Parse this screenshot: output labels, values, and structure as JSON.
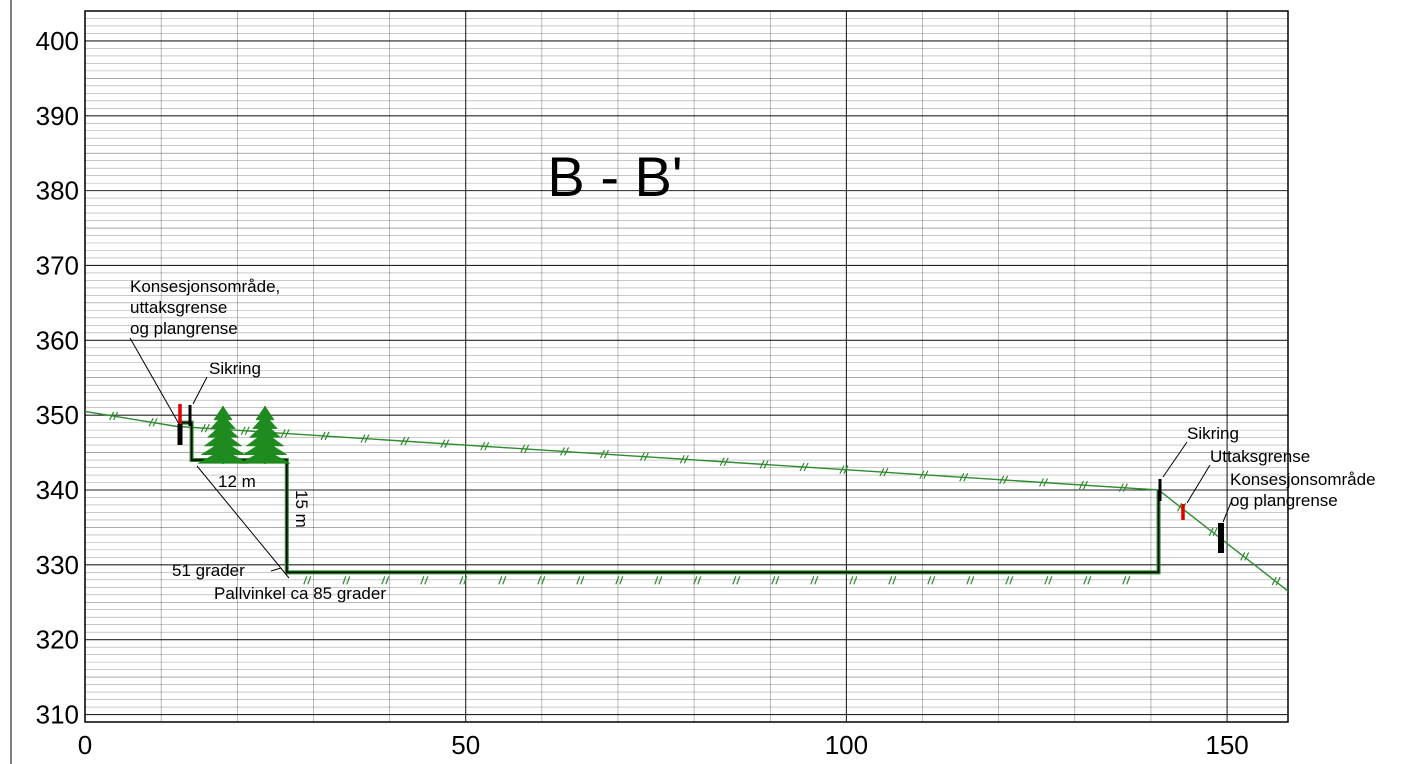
{
  "title": "B - B'",
  "y_ticks": [
    "400",
    "390",
    "380",
    "370",
    "360",
    "350",
    "340",
    "330",
    "320",
    "310"
  ],
  "x_ticks": [
    "0",
    "50",
    "100",
    "150"
  ],
  "annotations": {
    "left_concession_line1": "Konsesjonsområde,",
    "left_concession_line2": "uttaksgrense",
    "left_concession_line3": "og plangrense",
    "left_sikring": "Sikring",
    "bench_width": "12 m",
    "bench_height": "15 m",
    "slope_angle": "51 grader",
    "face_angle": "Pallvinkel ca 85 grader",
    "right_sikring": "Sikring",
    "right_uttaksgrense": "Uttaksgrense",
    "right_concession_line1": "Konsesjonsområde",
    "right_concession_line2": "og plangrense"
  },
  "colors": {
    "terrain": "#2e8b2e",
    "tree": "#1f8a1f",
    "profile": "#000000",
    "uttaksgrense_marker": "#e00000",
    "grid": "#000000"
  },
  "chart_data": {
    "type": "line",
    "title": "B - B'",
    "xlabel": "",
    "ylabel": "",
    "xlim": [
      0,
      158
    ],
    "ylim": [
      309,
      404
    ],
    "x_ticks": [
      0,
      50,
      100,
      150
    ],
    "y_ticks": [
      310,
      320,
      330,
      340,
      350,
      360,
      370,
      380,
      390,
      400
    ],
    "grid": true,
    "series": [
      {
        "kind": "original-terrain",
        "x": [
          0,
          12,
          141,
          158
        ],
        "y": [
          350.5,
          348.5,
          340,
          326.5
        ]
      },
      {
        "kind": "planned-profile",
        "x": [
          12.5,
          14,
          14,
          26.5,
          26.5,
          141,
          141
        ],
        "y": [
          349,
          349,
          344,
          344,
          329,
          329,
          340
        ]
      }
    ]
  }
}
